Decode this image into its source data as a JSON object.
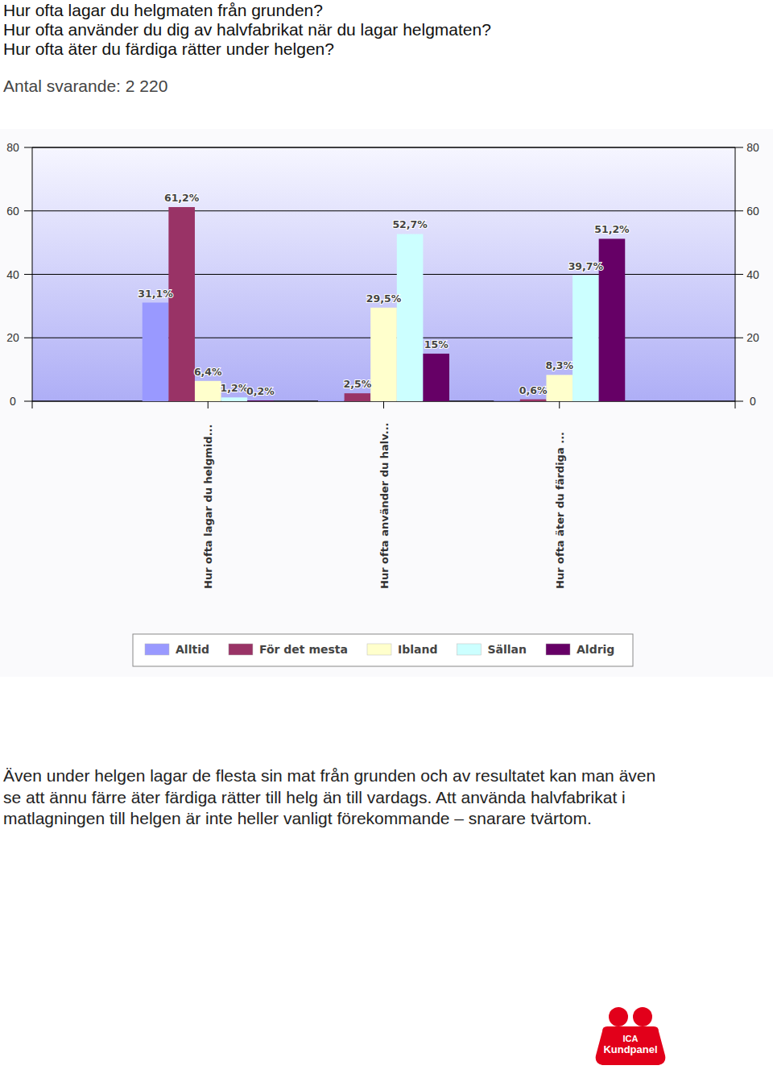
{
  "chart_data": {
    "type": "bar",
    "categories": [
      "Hur ofta lagar du helgmid...",
      "Hur ofta använder du halv...",
      "Hur ofta äter du färdiga ..."
    ],
    "series": [
      {
        "name": "Alltid",
        "color": "#9999ff",
        "values": [
          31.1,
          0.3,
          0.2
        ],
        "value_labels": [
          "31,1%",
          null,
          null
        ]
      },
      {
        "name": "För det mesta",
        "color": "#993366",
        "values": [
          61.2,
          2.5,
          0.6
        ],
        "value_labels": [
          "61,2%",
          "2,5%",
          "0,6%"
        ]
      },
      {
        "name": "Ibland",
        "color": "#ffffcc",
        "values": [
          6.4,
          29.5,
          8.3
        ],
        "value_labels": [
          "6,4%",
          "29,5%",
          "8,3%"
        ]
      },
      {
        "name": "Sällan",
        "color": "#ccffff",
        "values": [
          1.2,
          52.7,
          39.7
        ],
        "value_labels": [
          "1,2%",
          "52,7%",
          "39,7%"
        ]
      },
      {
        "name": "Aldrig",
        "color": "#660066",
        "values": [
          0.2,
          15,
          51.2
        ],
        "value_labels": [
          "0,2%",
          "15%",
          "51,2%"
        ]
      }
    ],
    "ylim": [
      0,
      80
    ],
    "yticks": [
      0,
      20,
      40,
      60,
      80
    ],
    "grid": true,
    "data_labels": true,
    "legend": "bottom"
  },
  "page": {
    "title": [
      "Hur ofta lagar du helgmaten från grunden?",
      "Hur ofta använder du dig av halvfabrikat när du lagar helgmaten?",
      "Hur ofta äter du färdiga rätter under helgen?"
    ],
    "subtitle": "Antal svarande: 2 220",
    "note": "Även under helgen lagar de flesta sin mat från grunden och av resultatet kan man även se att ännu färre äter färdiga rätter till helg än till vardags. Att använda halvfabrikat i matlagningen till helgen är inte heller vanligt förekommande – snarare tvärtom.",
    "logo": [
      "ICA",
      "Kundpanel"
    ]
  }
}
